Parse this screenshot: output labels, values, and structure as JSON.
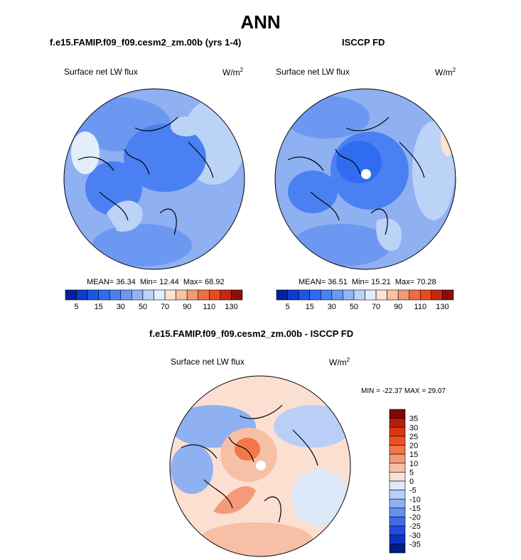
{
  "main_title": "ANN",
  "chart_data": [
    {
      "type": "heatmap",
      "title": "f.e15.FAMIP.f09_f09.cesm2_zm.00b (yrs 1-4)",
      "variable": "Surface net LW flux",
      "units": "W/m",
      "units_sup": "2",
      "projection": "north-polar-stereographic",
      "stats": {
        "mean_label": "MEAN=",
        "mean": "36.34",
        "min_label": "Min=",
        "min": "12.44",
        "max_label": "Max=",
        "max": "68.92"
      },
      "colorbar": {
        "levels": [
          5,
          10,
          15,
          20,
          30,
          40,
          50,
          60,
          70,
          80,
          90,
          100,
          110,
          120,
          130
        ],
        "tick_labels": [
          "5",
          "15",
          "30",
          "50",
          "70",
          "90",
          "110",
          "130"
        ],
        "colors": [
          "#06219b",
          "#0c3bd0",
          "#1a57e4",
          "#2f6cf0",
          "#4a80f2",
          "#6d98f2",
          "#92b4f4",
          "#bcd3f8",
          "#e3eefb",
          "#fde3d4",
          "#f9c2a5",
          "#f29a74",
          "#ed6e44",
          "#e84a1f",
          "#c42a10",
          "#8b0f08"
        ]
      }
    },
    {
      "type": "heatmap",
      "title": "ISCCP FD",
      "variable": "Surface net LW flux",
      "units": "W/m",
      "units_sup": "2",
      "projection": "north-polar-stereographic",
      "stats": {
        "mean_label": "MEAN=",
        "mean": "36.51",
        "min_label": "Min=",
        "min": "15.21",
        "max_label": "Max=",
        "max": "70.28"
      },
      "colorbar": {
        "levels": [
          5,
          10,
          15,
          20,
          30,
          40,
          50,
          60,
          70,
          80,
          90,
          100,
          110,
          120,
          130
        ],
        "tick_labels": [
          "5",
          "15",
          "30",
          "50",
          "70",
          "90",
          "110",
          "130"
        ],
        "colors": [
          "#06219b",
          "#0c3bd0",
          "#1a57e4",
          "#2f6cf0",
          "#4a80f2",
          "#6d98f2",
          "#92b4f4",
          "#bcd3f8",
          "#e3eefb",
          "#fde3d4",
          "#f9c2a5",
          "#f29a74",
          "#ed6e44",
          "#e84a1f",
          "#c42a10",
          "#8b0f08"
        ]
      }
    },
    {
      "type": "heatmap",
      "title": "f.e15.FAMIP.f09_f09.cesm2_zm.00b - ISCCP FD",
      "variable": "Surface net LW flux",
      "units": "W/m",
      "units_sup": "2",
      "projection": "north-polar-stereographic",
      "stats": {
        "min_label": "MIN =",
        "min": "-22.37",
        "max_label": "MAX =",
        "max": "29.07"
      },
      "colorbar": {
        "orientation": "vertical",
        "tick_labels": [
          "35",
          "30",
          "25",
          "20",
          "15",
          "10",
          "5",
          "0",
          "-5",
          "-10",
          "-15",
          "-20",
          "-25",
          "-30",
          "-35"
        ],
        "colors": [
          "#7a0a06",
          "#b41e0e",
          "#dc3512",
          "#ee5122",
          "#f3774a",
          "#f59a78",
          "#f7bfa5",
          "#fbe0d2",
          "#dde9f9",
          "#b9cff5",
          "#8fb0f1",
          "#6790ee",
          "#3e6de9",
          "#1f4ee0",
          "#0e33be",
          "#051c86"
        ]
      }
    }
  ]
}
